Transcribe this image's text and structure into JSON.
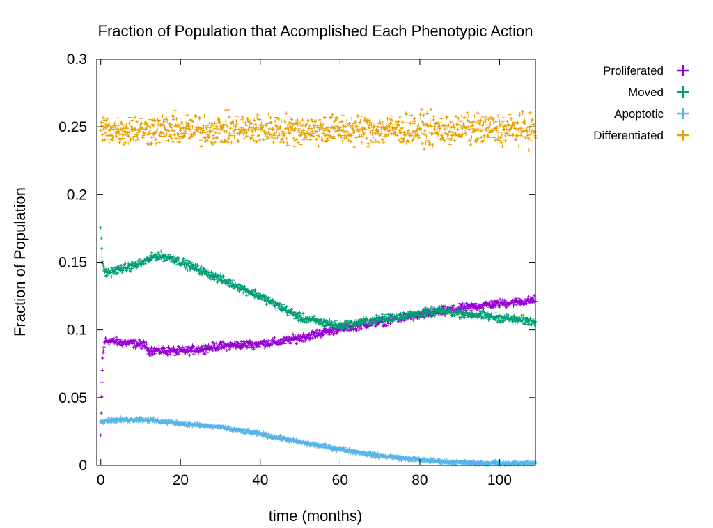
{
  "chart_data": {
    "type": "scatter",
    "title": "Fraction of Population that Acomplished Each Phenotypic Action",
    "xlabel": "time (months)",
    "ylabel": "Fraction of Population",
    "xlim": [
      -1,
      109
    ],
    "ylim": [
      0,
      0.3
    ],
    "x_ticks": [
      "0",
      "20",
      "40",
      "60",
      "80",
      "100"
    ],
    "y_ticks": [
      "0",
      "0.05",
      "0.1",
      "0.15",
      "0.2",
      "0.25",
      "0.3"
    ],
    "grid": false,
    "legend_position": "outside-right",
    "marker": "+",
    "x_step": 0.1,
    "series": [
      {
        "name": "Proliferated",
        "color": "#9400D3",
        "noise": 0.0015,
        "keypoints": [
          [
            0,
            0.022
          ],
          [
            0.2,
            0.05
          ],
          [
            0.5,
            0.08
          ],
          [
            1,
            0.092
          ],
          [
            5,
            0.091
          ],
          [
            11,
            0.089
          ],
          [
            12,
            0.085
          ],
          [
            20,
            0.084
          ],
          [
            30,
            0.088
          ],
          [
            45,
            0.091
          ],
          [
            60,
            0.101
          ],
          [
            80,
            0.111
          ],
          [
            95,
            0.118
          ],
          [
            109,
            0.122
          ]
        ]
      },
      {
        "name": "Moved",
        "color": "#009E73",
        "noise": 0.0015,
        "keypoints": [
          [
            0,
            0.175
          ],
          [
            0.2,
            0.16
          ],
          [
            0.6,
            0.145
          ],
          [
            1.5,
            0.142
          ],
          [
            5,
            0.145
          ],
          [
            10,
            0.149
          ],
          [
            14,
            0.155
          ],
          [
            18,
            0.153
          ],
          [
            25,
            0.144
          ],
          [
            40,
            0.125
          ],
          [
            50,
            0.109
          ],
          [
            60,
            0.103
          ],
          [
            70,
            0.108
          ],
          [
            85,
            0.114
          ],
          [
            100,
            0.109
          ],
          [
            109,
            0.106
          ]
        ]
      },
      {
        "name": "Apoptotic",
        "color": "#56B4E9",
        "noise": 0.0008,
        "keypoints": [
          [
            0,
            0.033
          ],
          [
            10,
            0.034
          ],
          [
            20,
            0.031
          ],
          [
            30,
            0.028
          ],
          [
            40,
            0.023
          ],
          [
            50,
            0.017
          ],
          [
            60,
            0.012
          ],
          [
            70,
            0.007
          ],
          [
            80,
            0.004
          ],
          [
            90,
            0.002
          ],
          [
            100,
            0.0015
          ],
          [
            109,
            0.0015
          ]
        ]
      },
      {
        "name": "Differentiated",
        "color": "#E69F00",
        "noise": 0.0055,
        "keypoints": [
          [
            0,
            0.248
          ],
          [
            109,
            0.248
          ]
        ]
      }
    ]
  }
}
